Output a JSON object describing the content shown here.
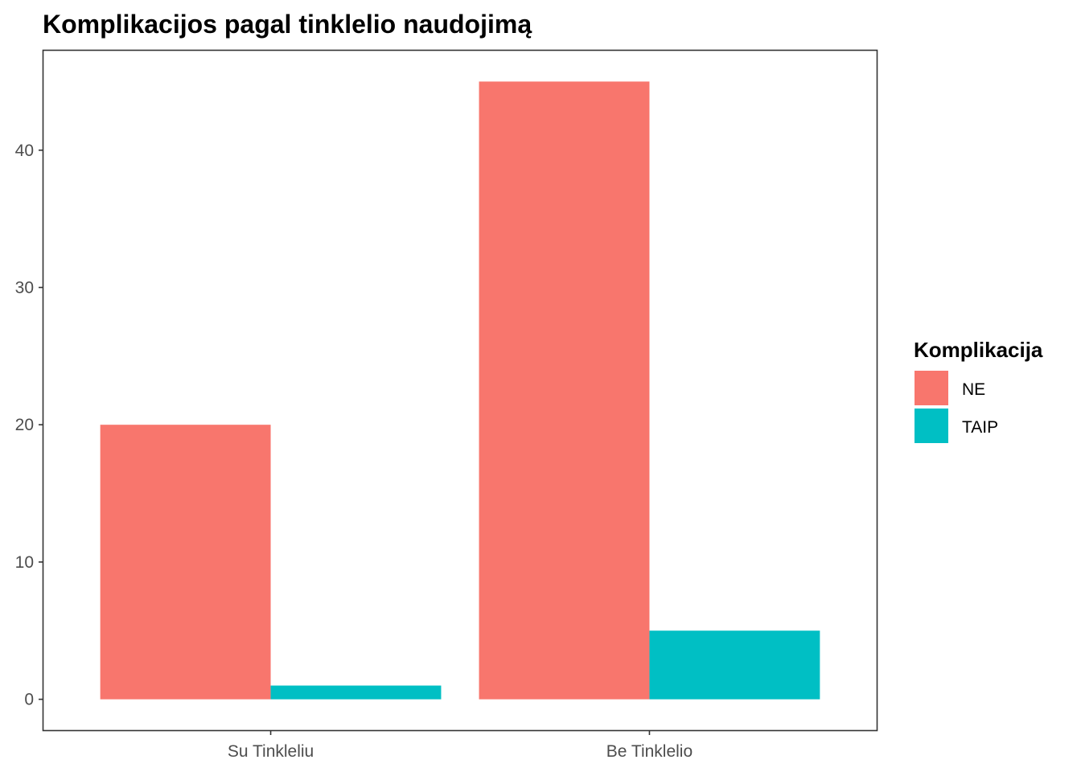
{
  "chart_data": {
    "type": "bar",
    "title": "Komplikacijos pagal tinklelio naudojimą",
    "xlabel": "",
    "ylabel": "",
    "categories": [
      "Su Tinkleliu",
      "Be Tinklelio"
    ],
    "series": [
      {
        "name": "NE",
        "values": [
          20,
          45
        ],
        "color": "#F8766D"
      },
      {
        "name": "TAIP",
        "values": [
          1,
          5
        ],
        "color": "#00BFC4"
      }
    ],
    "ylim": [
      -2.25,
      47.25
    ],
    "yticks": [
      0,
      10,
      20,
      30,
      40
    ],
    "grid": false,
    "legend": {
      "title": "Komplikacija",
      "position": "right"
    }
  }
}
